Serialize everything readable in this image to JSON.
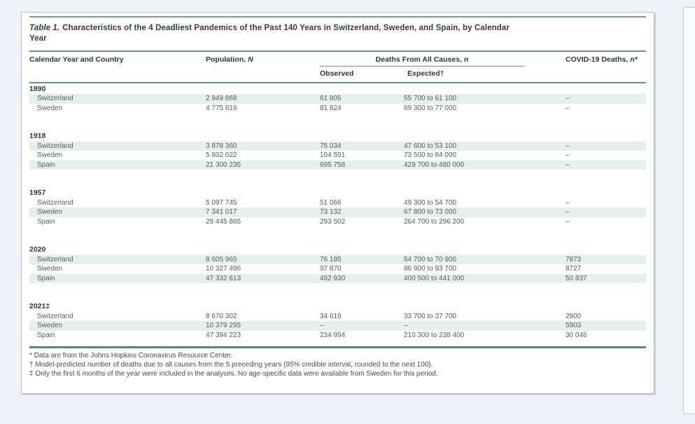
{
  "theme": {
    "page_bg": "#eef1f5",
    "panel_bg": "#ffffff",
    "rule_teal": "#5f9493",
    "rule_teal_thick": "#4a8b89",
    "row_tint": "#e5efeb",
    "header_text": "#2e3538",
    "body_text": "#565b5f"
  },
  "table": {
    "title_label": "Table 1.",
    "title_line1": "Characteristics of the 4 Deadliest Pandemics of the Past 140 Years in Switzerland, Sweden, and Spain, by Calendar",
    "title_line2": "Year",
    "columns": {
      "col1": "Calendar Year and Country",
      "population_label": "Population, ",
      "population_symbol": "N",
      "group_label": "Deaths From All Causes, ",
      "group_symbol": "n",
      "sub_observed": "Observed",
      "sub_expected": "Expected†",
      "covid_label": "COVID-19 Deaths, ",
      "covid_symbol": "n*"
    },
    "sections": [
      {
        "year": "1890",
        "rows": [
          {
            "country": "Switzerland",
            "population": "2 949 868",
            "observed": "61 805",
            "expected": "55 700 to 61 100",
            "covid": "–",
            "shaded": true
          },
          {
            "country": "Sweden",
            "population": "4 775 819",
            "observed": "81 824",
            "expected": "69 300 to 77 000",
            "covid": "–",
            "shaded": false
          }
        ]
      },
      {
        "year": "1918",
        "rows": [
          {
            "country": "Switzerland",
            "population": "3 878 360",
            "observed": "75 034",
            "expected": "47 600 to 53 100",
            "covid": "–",
            "shaded": true
          },
          {
            "country": "Sweden",
            "population": "5 802 022",
            "observed": "104 591",
            "expected": "73 500 to 84 000",
            "covid": "–",
            "shaded": false
          },
          {
            "country": "Spain",
            "population": "21 300 235",
            "observed": "695 758",
            "expected": "429 700 to 480 000",
            "covid": "–",
            "shaded": true
          }
        ]
      },
      {
        "year": "1957",
        "rows": [
          {
            "country": "Switzerland",
            "population": "5 097 745",
            "observed": "51 066",
            "expected": "49 300 to 54 700",
            "covid": "–",
            "shaded": false
          },
          {
            "country": "Sweden",
            "population": "7 341 017",
            "observed": "73 132",
            "expected": "67 800 to 73 000",
            "covid": "–",
            "shaded": true
          },
          {
            "country": "Spain",
            "population": "29 445 865",
            "observed": "293 502",
            "expected": "264 700 to 296 200",
            "covid": "–",
            "shaded": false
          }
        ]
      },
      {
        "year": "2020",
        "rows": [
          {
            "country": "Switzerland",
            "population": "8 605 965",
            "observed": "76 195",
            "expected": "64 700 to 70 900",
            "covid": "7873",
            "shaded": true
          },
          {
            "country": "Sweden",
            "population": "10 327 496",
            "observed": "97 870",
            "expected": "86 900 to 93 700",
            "covid": "8727",
            "shaded": false
          },
          {
            "country": "Spain",
            "population": "47 332 613",
            "observed": "492 930",
            "expected": "400 500 to 441 000",
            "covid": "50 837",
            "shaded": true
          }
        ]
      },
      {
        "year": "2021‡",
        "rows": [
          {
            "country": "Switzerland",
            "population": "8 670 302",
            "observed": "34 619",
            "expected": "33 700 to 37 700",
            "covid": "2900",
            "shaded": false
          },
          {
            "country": "Sweden",
            "population": "10 379 295",
            "observed": "–",
            "expected": "–",
            "covid": "5903",
            "shaded": true
          },
          {
            "country": "Spain",
            "population": "47 394 223",
            "observed": "234 994",
            "expected": "210 300 to 238 400",
            "covid": "30 046",
            "shaded": false
          }
        ]
      }
    ],
    "footnotes": [
      "* Data are from the Johns Hopkins Coronavirus Resource Center.",
      "† Model-predicted number of deaths due to all causes from the 5 preceding years (95% credible interval, rounded to the next 100).",
      "‡ Only the first 6 months of the year were included in the analyses. No age-specific data were available from Sweden for this period."
    ]
  }
}
